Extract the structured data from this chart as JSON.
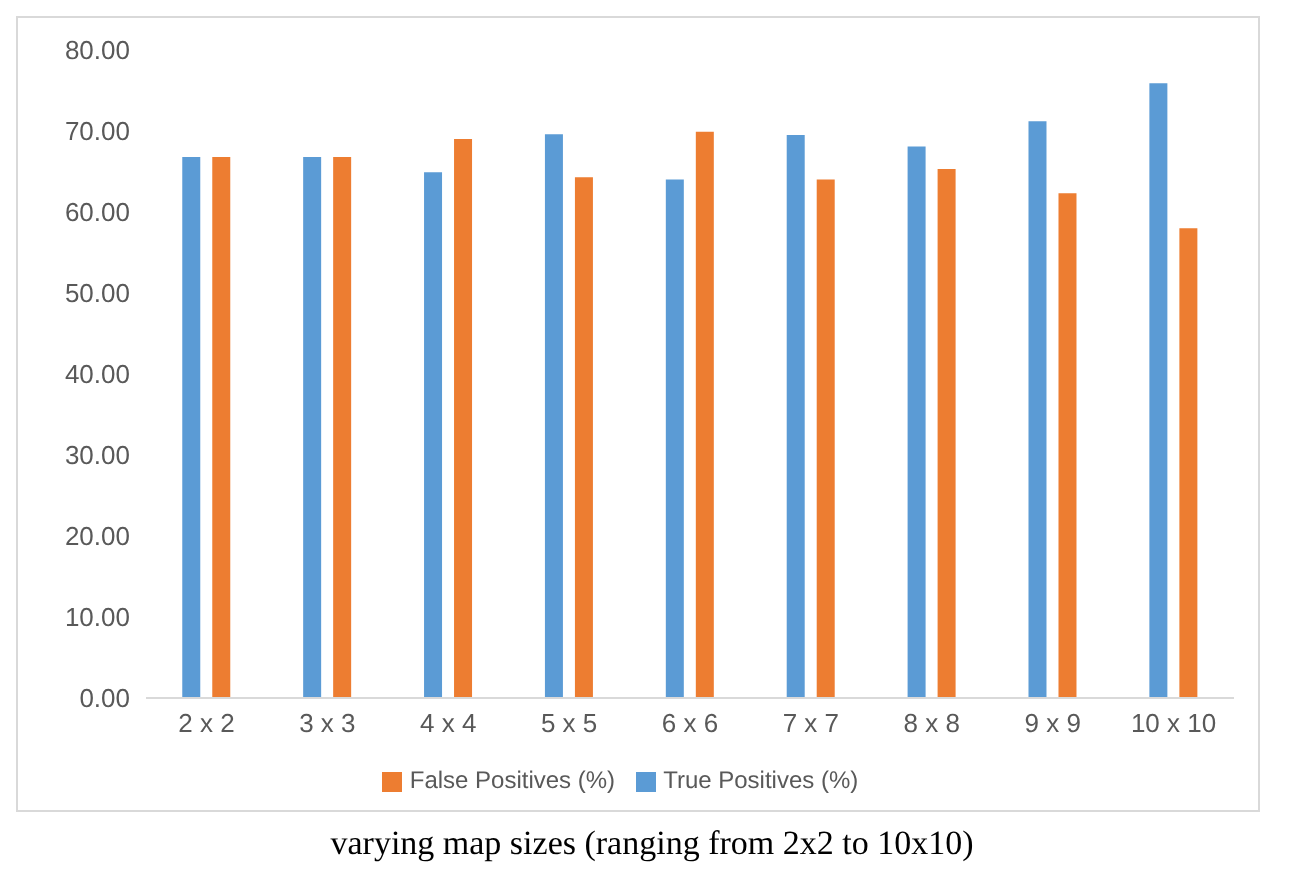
{
  "chart_data": {
    "type": "bar",
    "categories": [
      "2 x 2",
      "3 x 3",
      "4 x 4",
      "5 x 5",
      "6 x 6",
      "7 x 7",
      "8 x 8",
      "9 x 9",
      "10 x 10"
    ],
    "series": [
      {
        "name": "True Positives (%)",
        "color": "#5b9bd5",
        "values": [
          66.8,
          66.8,
          64.9,
          69.6,
          64.0,
          69.5,
          68.1,
          71.2,
          75.9
        ]
      },
      {
        "name": "False Positives (%)",
        "color": "#ed7d31",
        "values": [
          66.8,
          66.8,
          69.0,
          64.3,
          69.9,
          64.0,
          65.3,
          62.3,
          58.0
        ]
      }
    ],
    "ylim": [
      0,
      80
    ],
    "yticks": [
      {
        "value": 0,
        "label": "0.00"
      },
      {
        "value": 10,
        "label": "10.00"
      },
      {
        "value": 20,
        "label": "20.00"
      },
      {
        "value": 30,
        "label": "30.00"
      },
      {
        "value": 40,
        "label": "40.00"
      },
      {
        "value": 50,
        "label": "50.00"
      },
      {
        "value": 60,
        "label": "60.00"
      },
      {
        "value": 70,
        "label": "70.00"
      },
      {
        "value": 80,
        "label": "80.00"
      }
    ],
    "grid": false,
    "legend": "bottom",
    "annotations": [
      "varying map sizes (ranging from 2x2 to 10x10)"
    ]
  }
}
